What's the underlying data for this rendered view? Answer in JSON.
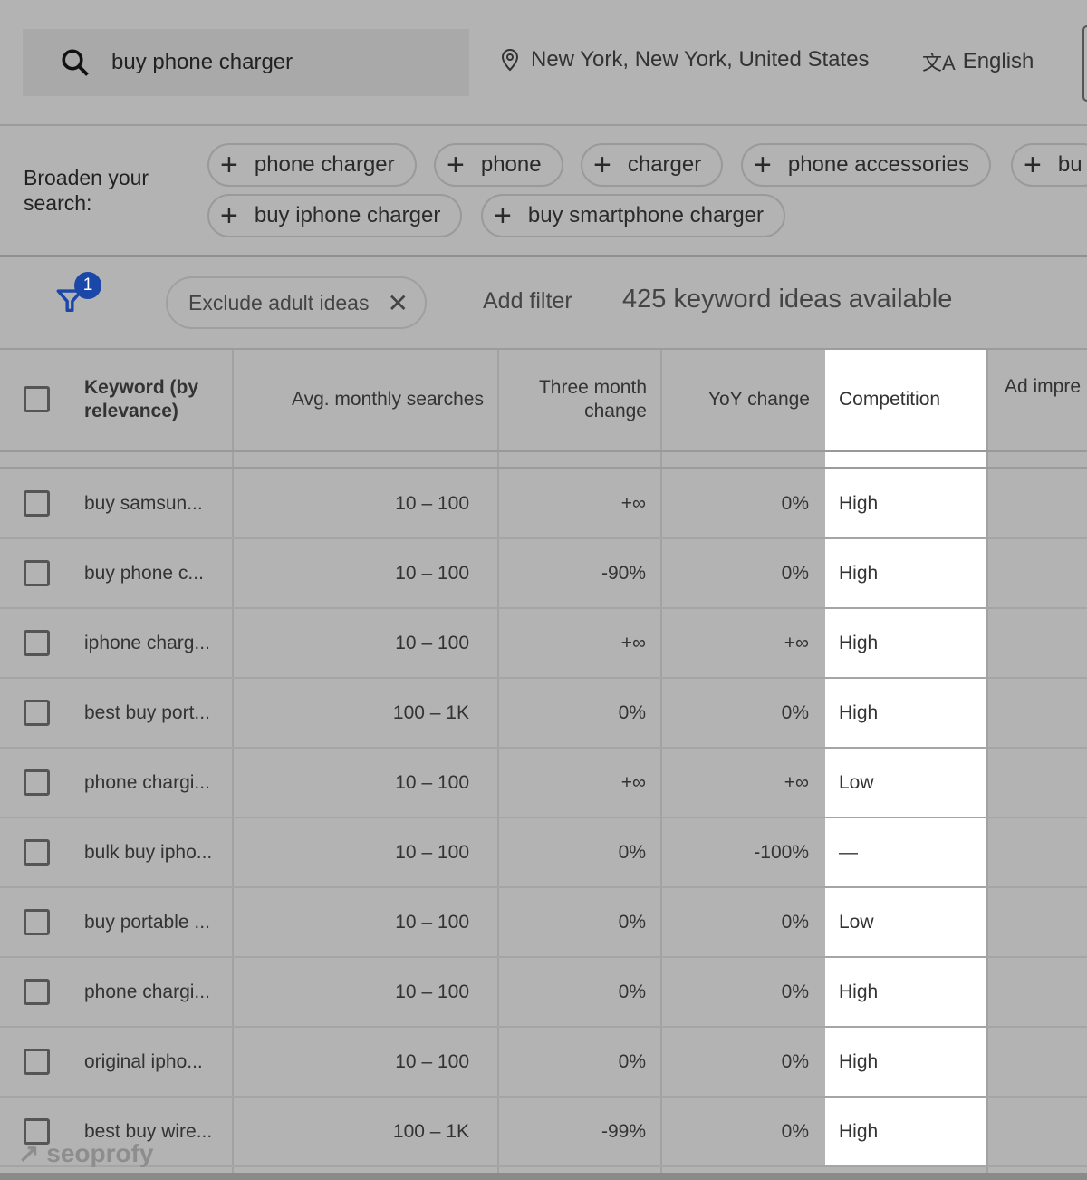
{
  "search": {
    "query": "buy phone charger",
    "location": "New York, New York, United States",
    "language": "English"
  },
  "broaden": {
    "label": "Broaden your search:",
    "chips": [
      "phone charger",
      "phone",
      "charger",
      "phone accessories",
      "bu",
      "buy iphone charger",
      "buy smartphone charger"
    ]
  },
  "filters": {
    "badge": "1",
    "chip": "Exclude adult ideas",
    "add_filter": "Add filter",
    "count": "425 keyword ideas available"
  },
  "table": {
    "headers": [
      "Keyword (by relevance)",
      "Avg. monthly searches",
      "Three month change",
      "YoY change",
      "Competition",
      "Ad impre"
    ],
    "rows": [
      [
        "buy samsun...",
        "10 – 100",
        "+∞",
        "0%",
        "High"
      ],
      [
        "buy phone c...",
        "10 – 100",
        "-90%",
        "0%",
        "High"
      ],
      [
        "iphone charg...",
        "10 – 100",
        "+∞",
        "+∞",
        "High"
      ],
      [
        "best buy port...",
        "100 – 1K",
        "0%",
        "0%",
        "High"
      ],
      [
        "phone chargi...",
        "10 – 100",
        "+∞",
        "+∞",
        "Low"
      ],
      [
        "bulk buy ipho...",
        "10 – 100",
        "0%",
        "-100%",
        "—"
      ],
      [
        "buy portable ...",
        "10 – 100",
        "0%",
        "0%",
        "Low"
      ],
      [
        "phone chargi...",
        "10 – 100",
        "0%",
        "0%",
        "High"
      ],
      [
        "original ipho...",
        "10 – 100",
        "0%",
        "0%",
        "High"
      ],
      [
        "best buy wire...",
        "100 – 1K",
        "-99%",
        "0%",
        "High"
      ]
    ]
  },
  "watermark": "seoprofy",
  "colors": {
    "accent": "#1a47a8",
    "background": "#b3b3b3",
    "highlight": "#ffffff"
  }
}
